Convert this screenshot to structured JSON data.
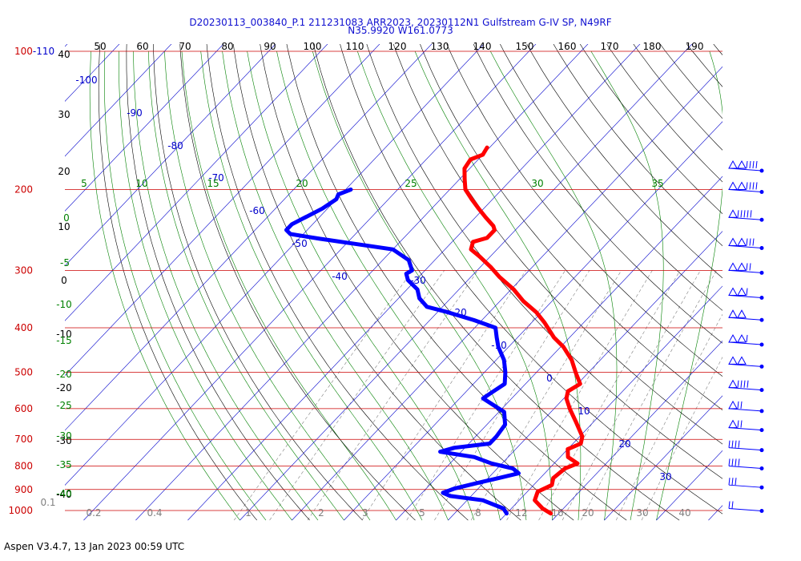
{
  "title_line1": "D20230113_003840_P.1 211231083 ARR2023, 20230112N1 Gulfstream G-IV SP, N49RF",
  "title_line2": "N35.9920 W161.0773",
  "footer": "Aspen V3.4.7, 13 Jan 2023  00:59 UTC",
  "colors": {
    "temperature": "#ff0000",
    "dewpoint": "#0000ff",
    "isobar": "#cc0000",
    "isotherm": "#0000cc",
    "dry_adiabat": "#000000",
    "moist_adiabat": "#008000",
    "mixing_ratio": "#808080"
  },
  "chart_data": {
    "type": "skew-t",
    "y_axis": {
      "pressure_ticks": [
        1000,
        900,
        800,
        700,
        600,
        500,
        400,
        300,
        200,
        100
      ],
      "top_label_suffix": "-110"
    },
    "top_axis_ticks": [
      50,
      60,
      70,
      80,
      90,
      100,
      110,
      120,
      130,
      140,
      150,
      160,
      170,
      180,
      190
    ],
    "left_axis_ticks": [
      "40",
      "30",
      "20",
      "10",
      "0",
      "-10",
      "-20",
      "-30",
      "-40"
    ],
    "isotherm_labels": [
      "-100",
      "-90",
      "-80",
      "-70",
      "-60",
      "-50",
      "-40",
      "-30",
      "-20",
      "-10",
      "0",
      "10",
      "20",
      "30"
    ],
    "moist_adiabat_labels": [
      "5",
      "10",
      "15",
      "20",
      "25",
      "30",
      "35",
      "0",
      "-5",
      "-10",
      "-15",
      "-20",
      "-25",
      "-30",
      "-35",
      "-40"
    ],
    "mixing_ratio_labels": [
      "0.1",
      "0.2",
      "0.4",
      "1",
      "2",
      "3",
      "5",
      "8",
      "12",
      "16",
      "20",
      "30",
      "40"
    ],
    "temperature": [
      {
        "p": 1015,
        "t": 18.5
      },
      {
        "p": 990,
        "t": 16.0
      },
      {
        "p": 950,
        "t": 13.0
      },
      {
        "p": 910,
        "t": 12.0
      },
      {
        "p": 880,
        "t": 13.5
      },
      {
        "p": 850,
        "t": 12.5
      },
      {
        "p": 810,
        "t": 13.0
      },
      {
        "p": 790,
        "t": 14.5
      },
      {
        "p": 765,
        "t": 11.5
      },
      {
        "p": 735,
        "t": 10.0
      },
      {
        "p": 715,
        "t": 11.5
      },
      {
        "p": 690,
        "t": 10.5
      },
      {
        "p": 640,
        "t": 6.5
      },
      {
        "p": 600,
        "t": 3.0
      },
      {
        "p": 570,
        "t": 0.5
      },
      {
        "p": 550,
        "t": -0.5
      },
      {
        "p": 530,
        "t": 0.5
      },
      {
        "p": 500,
        "t": -2.5
      },
      {
        "p": 470,
        "t": -5.5
      },
      {
        "p": 440,
        "t": -9.5
      },
      {
        "p": 420,
        "t": -13.0
      },
      {
        "p": 390,
        "t": -17.5
      },
      {
        "p": 370,
        "t": -21.0
      },
      {
        "p": 350,
        "t": -25.5
      },
      {
        "p": 330,
        "t": -29.5
      },
      {
        "p": 310,
        "t": -34.5
      },
      {
        "p": 295,
        "t": -38.0
      },
      {
        "p": 280,
        "t": -42.0
      },
      {
        "p": 270,
        "t": -45.0
      },
      {
        "p": 260,
        "t": -46.0
      },
      {
        "p": 255,
        "t": -44.0
      },
      {
        "p": 245,
        "t": -44.0
      },
      {
        "p": 240,
        "t": -45.0
      },
      {
        "p": 230,
        "t": -48.0
      },
      {
        "p": 220,
        "t": -51.0
      },
      {
        "p": 210,
        "t": -54.0
      },
      {
        "p": 200,
        "t": -57.0
      },
      {
        "p": 190,
        "t": -59.0
      },
      {
        "p": 180,
        "t": -61.0
      },
      {
        "p": 172,
        "t": -61.5
      },
      {
        "p": 168,
        "t": -60.0
      },
      {
        "p": 162,
        "t": -60.5
      }
    ],
    "dewpoint": [
      {
        "p": 1015,
        "t": 10.0
      },
      {
        "p": 990,
        "t": 8.5
      },
      {
        "p": 950,
        "t": 3.0
      },
      {
        "p": 930,
        "t": -4.0
      },
      {
        "p": 915,
        "t": -6.0
      },
      {
        "p": 895,
        "t": -4.5
      },
      {
        "p": 870,
        "t": -1.0
      },
      {
        "p": 850,
        "t": 2.0
      },
      {
        "p": 830,
        "t": 5.0
      },
      {
        "p": 810,
        "t": 3.0
      },
      {
        "p": 790,
        "t": -2.0
      },
      {
        "p": 765,
        "t": -6.5
      },
      {
        "p": 745,
        "t": -14.0
      },
      {
        "p": 730,
        "t": -12.0
      },
      {
        "p": 715,
        "t": -6.0
      },
      {
        "p": 690,
        "t": -6.0
      },
      {
        "p": 650,
        "t": -6.5
      },
      {
        "p": 610,
        "t": -9.0
      },
      {
        "p": 585,
        "t": -13.0
      },
      {
        "p": 570,
        "t": -15.5
      },
      {
        "p": 555,
        "t": -15.0
      },
      {
        "p": 530,
        "t": -14.0
      },
      {
        "p": 500,
        "t": -16.0
      },
      {
        "p": 470,
        "t": -18.5
      },
      {
        "p": 440,
        "t": -22.0
      },
      {
        "p": 420,
        "t": -24.0
      },
      {
        "p": 400,
        "t": -26.0
      },
      {
        "p": 385,
        "t": -31.5
      },
      {
        "p": 370,
        "t": -38.0
      },
      {
        "p": 360,
        "t": -43.0
      },
      {
        "p": 345,
        "t": -46.0
      },
      {
        "p": 330,
        "t": -48.0
      },
      {
        "p": 315,
        "t": -51.5
      },
      {
        "p": 305,
        "t": -53.0
      },
      {
        "p": 300,
        "t": -52.5
      },
      {
        "p": 285,
        "t": -55.0
      },
      {
        "p": 270,
        "t": -60.0
      },
      {
        "p": 262,
        "t": -69.0
      },
      {
        "p": 256,
        "t": -76.0
      },
      {
        "p": 250,
        "t": -82.5
      },
      {
        "p": 245,
        "t": -84.0
      },
      {
        "p": 238,
        "t": -84.0
      },
      {
        "p": 220,
        "t": -81.0
      },
      {
        "p": 210,
        "t": -80.0
      },
      {
        "p": 205,
        "t": -80.5
      },
      {
        "p": 200,
        "t": -79.0
      }
    ],
    "wind_barbs": [
      {
        "p": 160,
        "symbol": "△△||||"
      },
      {
        "p": 200,
        "symbol": "△△||||"
      },
      {
        "p": 230,
        "symbol": "△|||||"
      },
      {
        "p": 265,
        "symbol": "△△|||"
      },
      {
        "p": 300,
        "symbol": "△△||"
      },
      {
        "p": 340,
        "symbol": "△△|"
      },
      {
        "p": 380,
        "symbol": "△△"
      },
      {
        "p": 430,
        "symbol": "△△|"
      },
      {
        "p": 480,
        "symbol": "△△"
      },
      {
        "p": 540,
        "symbol": "△||||"
      },
      {
        "p": 600,
        "symbol": "△||"
      },
      {
        "p": 660,
        "symbol": "△||"
      },
      {
        "p": 730,
        "symbol": "||||"
      },
      {
        "p": 800,
        "symbol": "||||"
      },
      {
        "p": 880,
        "symbol": "|||"
      },
      {
        "p": 990,
        "symbol": "||"
      }
    ]
  }
}
